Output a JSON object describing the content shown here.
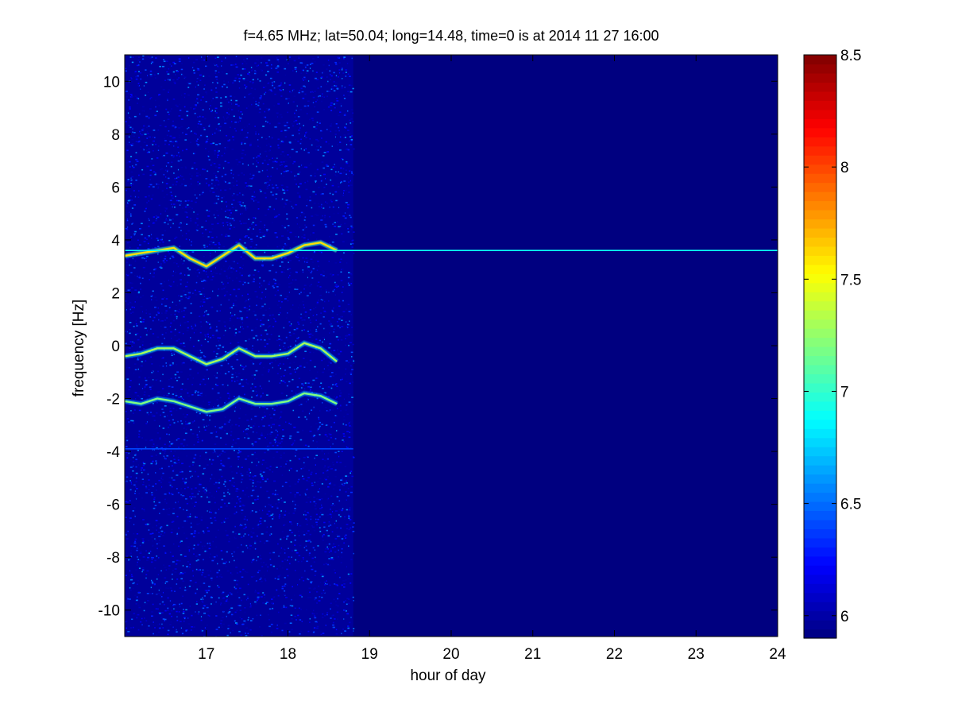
{
  "chart_data": {
    "type": "heatmap",
    "title": "f=4.65 MHz;  lat=50.04; long=14.48, time=0 is at 2014 11 27 16:00",
    "xlabel": "hour of day",
    "ylabel": "frequency [Hz]",
    "xlim": [
      16.0,
      24.0
    ],
    "ylim": [
      -11.0,
      11.0
    ],
    "x_ticks": [
      17,
      18,
      19,
      20,
      21,
      22,
      23,
      24
    ],
    "y_ticks": [
      -10,
      -8,
      -6,
      -4,
      -2,
      0,
      2,
      4,
      6,
      8,
      10
    ],
    "colorbar": {
      "colormap": "jet",
      "range": [
        5.9,
        8.5
      ],
      "ticks": [
        "6",
        "6.5",
        "7",
        "7.5",
        "8",
        "8.5"
      ]
    },
    "background_level": 5.9,
    "noise_region": {
      "x_start": 16.0,
      "x_end": 18.8,
      "level_range": [
        6.0,
        6.6
      ]
    },
    "features": [
      {
        "name": "upper trace",
        "level": 7.6,
        "points": [
          [
            16.0,
            3.4
          ],
          [
            16.2,
            3.5
          ],
          [
            16.4,
            3.6
          ],
          [
            16.6,
            3.7
          ],
          [
            16.8,
            3.3
          ],
          [
            17.0,
            3.0
          ],
          [
            17.2,
            3.4
          ],
          [
            17.4,
            3.8
          ],
          [
            17.6,
            3.3
          ],
          [
            17.8,
            3.3
          ],
          [
            18.0,
            3.5
          ],
          [
            18.2,
            3.8
          ],
          [
            18.4,
            3.9
          ],
          [
            18.6,
            3.6
          ]
        ]
      },
      {
        "name": "middle trace",
        "level": 7.3,
        "points": [
          [
            16.0,
            -0.4
          ],
          [
            16.2,
            -0.3
          ],
          [
            16.4,
            -0.1
          ],
          [
            16.6,
            -0.1
          ],
          [
            16.8,
            -0.4
          ],
          [
            17.0,
            -0.7
          ],
          [
            17.2,
            -0.5
          ],
          [
            17.4,
            -0.1
          ],
          [
            17.6,
            -0.4
          ],
          [
            17.8,
            -0.4
          ],
          [
            18.0,
            -0.3
          ],
          [
            18.2,
            0.1
          ],
          [
            18.4,
            -0.1
          ],
          [
            18.6,
            -0.6
          ]
        ]
      },
      {
        "name": "lower trace",
        "level": 7.2,
        "points": [
          [
            16.0,
            -2.1
          ],
          [
            16.2,
            -2.2
          ],
          [
            16.4,
            -2.0
          ],
          [
            16.6,
            -2.1
          ],
          [
            16.8,
            -2.3
          ],
          [
            17.0,
            -2.5
          ],
          [
            17.2,
            -2.4
          ],
          [
            17.4,
            -2.0
          ],
          [
            17.6,
            -2.2
          ],
          [
            17.8,
            -2.2
          ],
          [
            18.0,
            -2.1
          ],
          [
            18.2,
            -1.8
          ],
          [
            18.4,
            -1.9
          ],
          [
            18.6,
            -2.2
          ]
        ]
      },
      {
        "name": "constant line",
        "level": 6.9,
        "points": [
          [
            16.0,
            3.6
          ],
          [
            24.0,
            3.6
          ]
        ]
      },
      {
        "name": "faint line",
        "level": 6.4,
        "points": [
          [
            16.0,
            -3.9
          ],
          [
            18.8,
            -3.9
          ]
        ]
      }
    ]
  }
}
